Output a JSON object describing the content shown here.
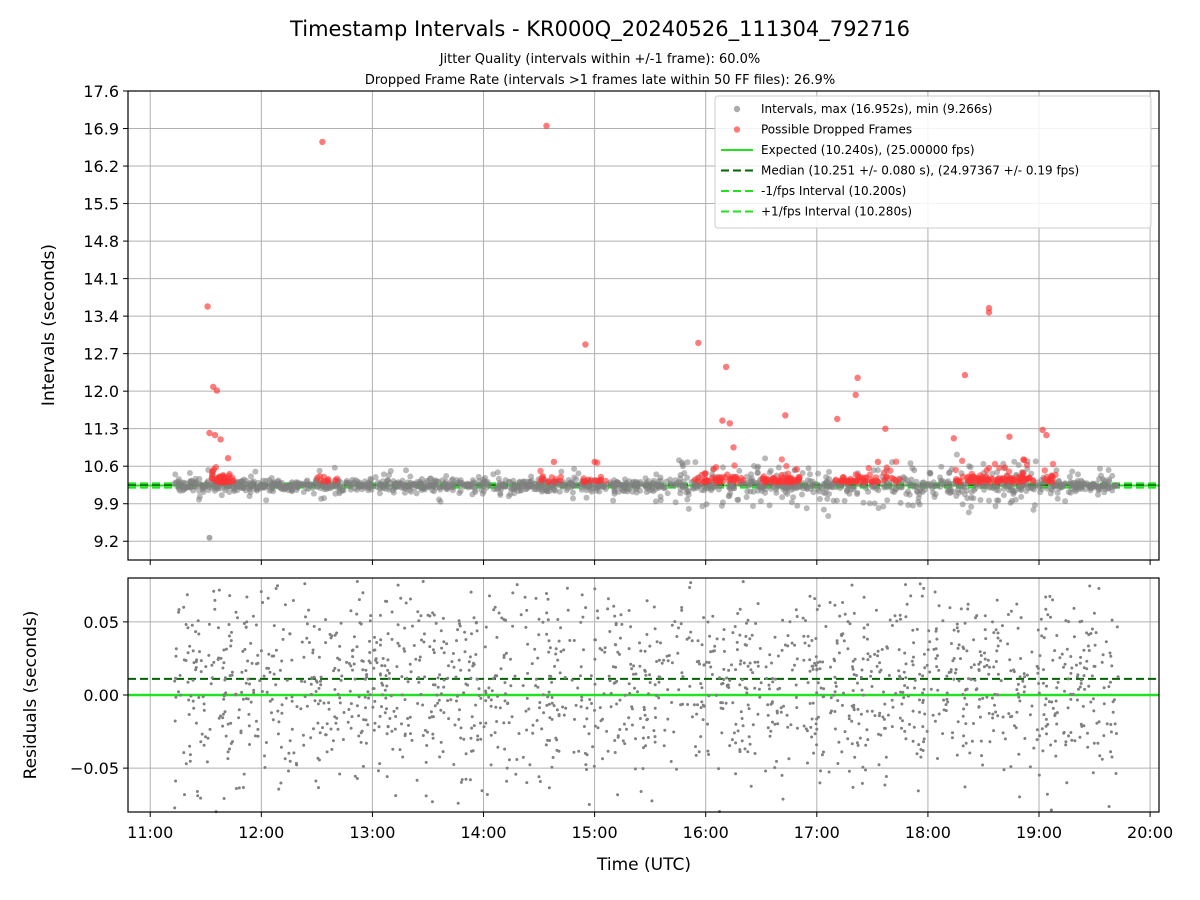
{
  "chart_data": [
    {
      "type": "scatter",
      "title": "Timestamp Intervals - KR000Q_20240526_111304_792716",
      "subtitle_1": "Jitter Quality (intervals within +/-1 frame): 60.0%",
      "subtitle_2": "Dropped Frame Rate (intervals >1 frames late within 50 FF files): 26.9%",
      "ylabel": "Intervals (seconds)",
      "ylim": [
        8.85,
        17.6
      ],
      "yticks": [
        "9.2",
        "9.9",
        "10.6",
        "11.3",
        "12.0",
        "12.7",
        "13.4",
        "14.1",
        "14.8",
        "15.5",
        "16.2",
        "16.9",
        "17.6"
      ],
      "ytick_values": [
        9.2,
        9.9,
        10.6,
        11.3,
        12.0,
        12.7,
        13.4,
        14.1,
        14.8,
        15.5,
        16.2,
        16.9,
        17.6
      ],
      "xlim_hours": [
        10.8,
        20.08
      ],
      "grid": true,
      "legend_position": "top-right",
      "legend": [
        {
          "label": "Intervals, max (16.952s), min (9.266s)",
          "kind": "dot",
          "color": "#808080"
        },
        {
          "label": "Possible Dropped Frames",
          "kind": "dot",
          "color": "#ff3333"
        },
        {
          "label": "Expected (10.240s), (25.00000 fps)",
          "kind": "solid",
          "color": "#22e022"
        },
        {
          "label": "Median (10.251 +/- 0.080 s), (24.97367 +/- 0.19 fps)",
          "kind": "dashed",
          "color": "#006400"
        },
        {
          "label": "-1/fps Interval (10.200s)",
          "kind": "dashed",
          "color": "#22e022"
        },
        {
          "label": "+1/fps Interval (10.280s)",
          "kind": "dashed",
          "color": "#22e022"
        }
      ],
      "lines": {
        "expected": 10.24,
        "median": 10.251,
        "minus_fps": 10.2,
        "plus_fps": 10.28
      },
      "outliers": [
        {
          "x": "11:31",
          "y": 13.58
        },
        {
          "x": "11:34",
          "y": 12.08
        },
        {
          "x": "11:36",
          "y": 12.01
        },
        {
          "x": "11:35",
          "y": 11.18
        },
        {
          "x": "11:38",
          "y": 11.1
        },
        {
          "x": "11:42",
          "y": 10.75
        },
        {
          "x": "11:32",
          "y": 11.22
        },
        {
          "x": "12:33",
          "y": 16.65
        },
        {
          "x": "14:34",
          "y": 16.95
        },
        {
          "x": "14:55",
          "y": 12.87
        },
        {
          "x": "15:56",
          "y": 12.9
        },
        {
          "x": "16:11",
          "y": 12.45
        },
        {
          "x": "16:09",
          "y": 11.45
        },
        {
          "x": "16:13",
          "y": 11.4
        },
        {
          "x": "16:43",
          "y": 11.55
        },
        {
          "x": "17:11",
          "y": 11.48
        },
        {
          "x": "17:22",
          "y": 12.25
        },
        {
          "x": "17:21",
          "y": 11.93
        },
        {
          "x": "17:37",
          "y": 11.3
        },
        {
          "x": "18:20",
          "y": 12.3
        },
        {
          "x": "18:33",
          "y": 13.55
        },
        {
          "x": "18:33",
          "y": 13.47
        },
        {
          "x": "19:02",
          "y": 11.28
        },
        {
          "x": "19:04",
          "y": 11.18
        },
        {
          "x": "18:44",
          "y": 11.15
        },
        {
          "x": "18:14",
          "y": 11.12
        },
        {
          "x": "15:00",
          "y": 10.68
        },
        {
          "x": "14:38",
          "y": 10.68
        },
        {
          "x": "16:15",
          "y": 10.95
        },
        {
          "x": "17:33",
          "y": 10.68
        },
        {
          "x": "18:52",
          "y": 10.72
        }
      ],
      "grey_min": {
        "x": "11:32",
        "y": 9.266
      }
    },
    {
      "type": "scatter",
      "ylabel": "Residuals (seconds)",
      "ylim": [
        -0.08,
        0.08
      ],
      "yticks": [
        "−0.05",
        "0.00",
        "0.05"
      ],
      "ytick_values": [
        -0.05,
        0.0,
        0.05
      ],
      "xlabel": "Time (UTC)",
      "xticks": [
        "11:00",
        "12:00",
        "13:00",
        "14:00",
        "15:00",
        "16:00",
        "17:00",
        "18:00",
        "19:00",
        "20:00"
      ],
      "xtick_hours": [
        11,
        12,
        13,
        14,
        15,
        16,
        17,
        18,
        19,
        20
      ],
      "xlim_hours": [
        10.8,
        20.08
      ],
      "data_range_hours": [
        11.22,
        19.72
      ],
      "lines": {
        "zero": 0.0,
        "median": 0.011
      },
      "grid": true
    }
  ],
  "colors": {
    "grey": "#808080",
    "red": "#ff3333",
    "green": "#22e022",
    "dark_green": "#006400",
    "grid": "#b0b0b0"
  }
}
